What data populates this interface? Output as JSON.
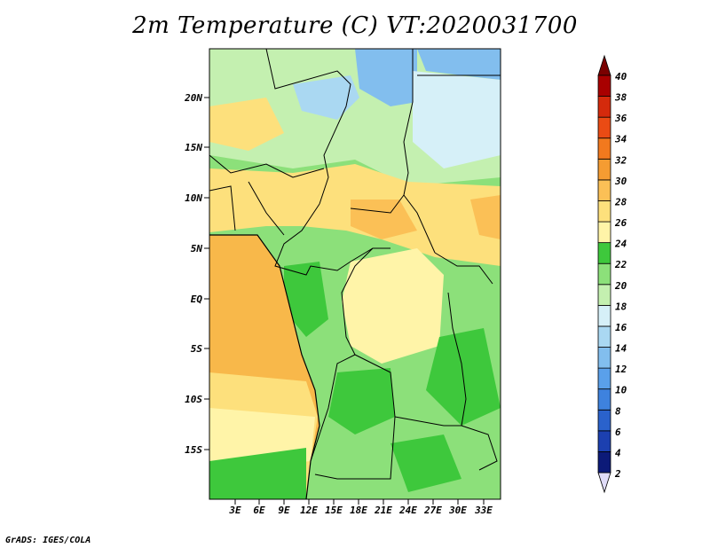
{
  "title": "2m Temperature (C) VT:2020031700",
  "footer": "GrADS: IGES/COLA",
  "map": {
    "lat_labels": [
      "20N",
      "15N",
      "10N",
      "5N",
      "EQ",
      "5S",
      "10S",
      "15S"
    ],
    "lon_labels": [
      "3E",
      "6E",
      "9E",
      "12E",
      "15E",
      "18E",
      "21E",
      "24E",
      "27E",
      "30E",
      "33E"
    ]
  },
  "legend": {
    "labels": [
      "2",
      "4",
      "6",
      "8",
      "10",
      "12",
      "14",
      "16",
      "18",
      "20",
      "22",
      "24",
      "26",
      "28",
      "30",
      "32",
      "34",
      "36",
      "38",
      "40"
    ],
    "colors": [
      "#e0dcf8",
      "#0c1a78",
      "#1c40b0",
      "#2a62cc",
      "#3e82de",
      "#5aa0ea",
      "#82beee",
      "#aad8f2",
      "#d6f0f8",
      "#c4f0b0",
      "#8ce07a",
      "#3ec83c",
      "#fff4a8",
      "#fde07c",
      "#fbc056",
      "#f59c32",
      "#f2791e",
      "#ea4b14",
      "#d42a0c",
      "#a80000",
      "#7a0000"
    ]
  },
  "colors": {
    "sea_warm": "#f8b84a",
    "sea_mid": "#fde07c",
    "sea_cool": "#fff4a8",
    "land_green": "#8ce07a",
    "land_light": "#c4f0b0",
    "land_dark": "#3ec83c",
    "desert_blue": "#82beee",
    "desert_light": "#d6f0f8"
  }
}
